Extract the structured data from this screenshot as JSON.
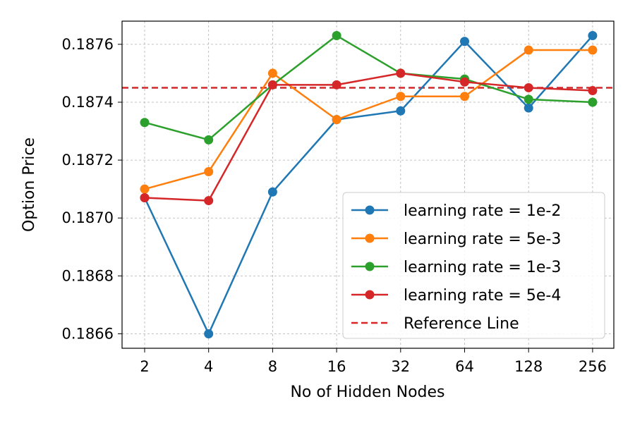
{
  "chart_data": {
    "type": "line",
    "title": "",
    "xlabel": "No of Hidden Nodes",
    "ylabel": "Option Price",
    "categories": [
      "2",
      "4",
      "8",
      "16",
      "32",
      "64",
      "128",
      "256"
    ],
    "x_scale": "log2",
    "yticks": [
      "0.1866",
      "0.1868",
      "0.1870",
      "0.1872",
      "0.1874",
      "0.1876"
    ],
    "ylim": [
      0.18655,
      0.18768
    ],
    "grid": true,
    "legend_position": "lower-right",
    "series": [
      {
        "name": "learning rate = 1e-2",
        "color": "#1f77b4",
        "marker": "circle",
        "values": [
          0.18707,
          0.1866,
          0.18709,
          0.18734,
          0.18737,
          0.18761,
          0.18738,
          0.18763
        ]
      },
      {
        "name": "learning rate = 5e-3",
        "color": "#ff7f0e",
        "marker": "circle",
        "values": [
          0.1871,
          0.18716,
          0.1875,
          0.18734,
          0.18742,
          0.18742,
          0.18758,
          0.18758
        ]
      },
      {
        "name": "learning rate = 1e-3",
        "color": "#2ca02c",
        "marker": "circle",
        "values": [
          0.18733,
          0.18727,
          0.18746,
          0.18763,
          0.1875,
          0.18748,
          0.18741,
          0.1874
        ]
      },
      {
        "name": "learning rate = 5e-4",
        "color": "#d62728",
        "marker": "circle",
        "values": [
          0.18707,
          0.18706,
          0.18746,
          0.18746,
          0.1875,
          0.18747,
          0.18745,
          0.18744
        ]
      }
    ],
    "reference_line": {
      "name": "Reference Line",
      "value": 0.18745,
      "color": "#d62728",
      "style": "dashed"
    }
  }
}
